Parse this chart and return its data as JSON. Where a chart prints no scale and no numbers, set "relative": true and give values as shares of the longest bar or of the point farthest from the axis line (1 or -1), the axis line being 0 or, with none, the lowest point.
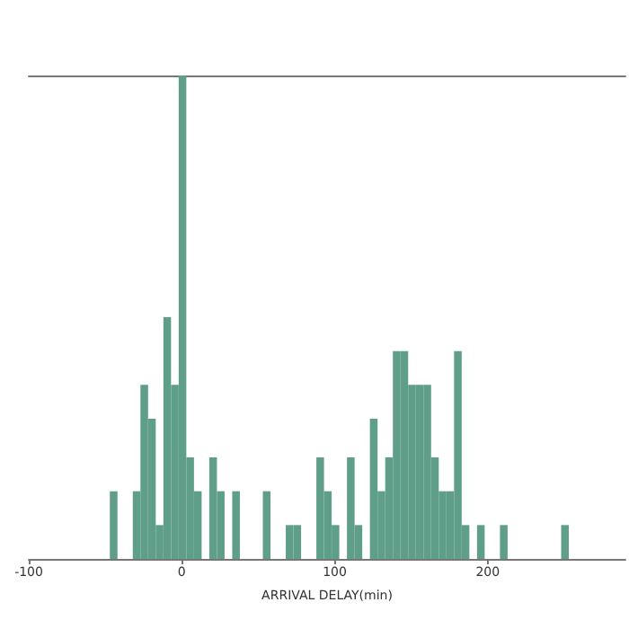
{
  "chart_data": {
    "type": "bar",
    "xlabel": "ARRIVAL DELAY(min)",
    "relative": true,
    "color": "#5f9e89",
    "x": [
      -44.5,
      -39.5,
      -34.5,
      -29.5,
      -24.5,
      -19.5,
      -14.5,
      -9.5,
      -4.5,
      0.5,
      5.5,
      10.5,
      15.5,
      20.5,
      25.5,
      30.5,
      35.5,
      40.5,
      45.5,
      50.5,
      55.5,
      60.5,
      65.5,
      70.5,
      75.5,
      80.5,
      85.5,
      90.5,
      95.5,
      100.5,
      105.5,
      110.5,
      115.5,
      120.5,
      125.5,
      130.5,
      135.5,
      140.5,
      145.5,
      150.5,
      155.5,
      160.5,
      165.5,
      170.5,
      175.5,
      180.5,
      185.5,
      190.5,
      195.5,
      200.5,
      205.5,
      210.5,
      215.5,
      220.5,
      225.5,
      230.5,
      235.5,
      240.5,
      245.5,
      250.5
    ],
    "values": [
      0.14,
      0,
      0,
      0.14,
      0.36,
      0.29,
      0.07,
      0.5,
      0.36,
      1,
      0.21,
      0.14,
      0,
      0.21,
      0.14,
      0,
      0.14,
      0,
      0,
      0,
      0.14,
      0,
      0,
      0.07,
      0.07,
      0,
      0,
      0.21,
      0.14,
      0.07,
      0,
      0.21,
      0.07,
      0,
      0.29,
      0.14,
      0.21,
      0.43,
      0.43,
      0.36,
      0.36,
      0.36,
      0.21,
      0.14,
      0.14,
      0.43,
      0.07,
      0,
      0.07,
      0,
      0,
      0.07,
      0,
      0,
      0,
      0,
      0,
      0,
      0,
      0.07
    ],
    "xlim": [
      -100,
      290
    ],
    "xticks": [
      -100,
      0,
      100,
      200
    ],
    "grid": false,
    "tick_labels": "x"
  }
}
